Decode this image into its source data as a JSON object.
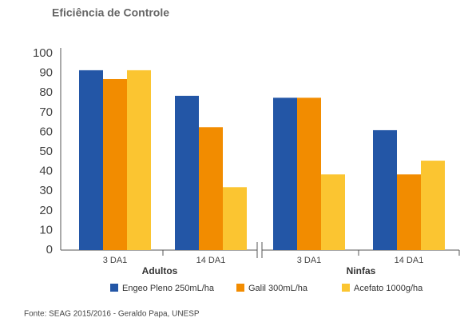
{
  "chart_data": {
    "type": "bar",
    "title": "Eficiência de Controle",
    "categories": [
      "3 DA1",
      "14 DA1",
      "3 DA1",
      "14 DA1"
    ],
    "groups": [
      "Adultos",
      "Ninfas"
    ],
    "series": [
      {
        "name": "Engeo Pleno 250mL/ha",
        "color": "#2356a6",
        "values": [
          91.5,
          78.5,
          77.5,
          61
        ]
      },
      {
        "name": "Galil 300mL/ha",
        "color": "#f28c00",
        "values": [
          87,
          62.5,
          77.5,
          38.5
        ]
      },
      {
        "name": "Acefato 1000g/ha",
        "color": "#fbc531",
        "values": [
          91.5,
          32,
          38.5,
          45.5
        ]
      }
    ],
    "ylim": [
      0,
      100
    ],
    "yticks": [
      0,
      10,
      20,
      30,
      40,
      50,
      60,
      70,
      80,
      90,
      100
    ],
    "grid": false,
    "legend": "bottom",
    "source": "Fonte: SEAG 2015/2016 - Geraldo Papa, UNESP"
  }
}
